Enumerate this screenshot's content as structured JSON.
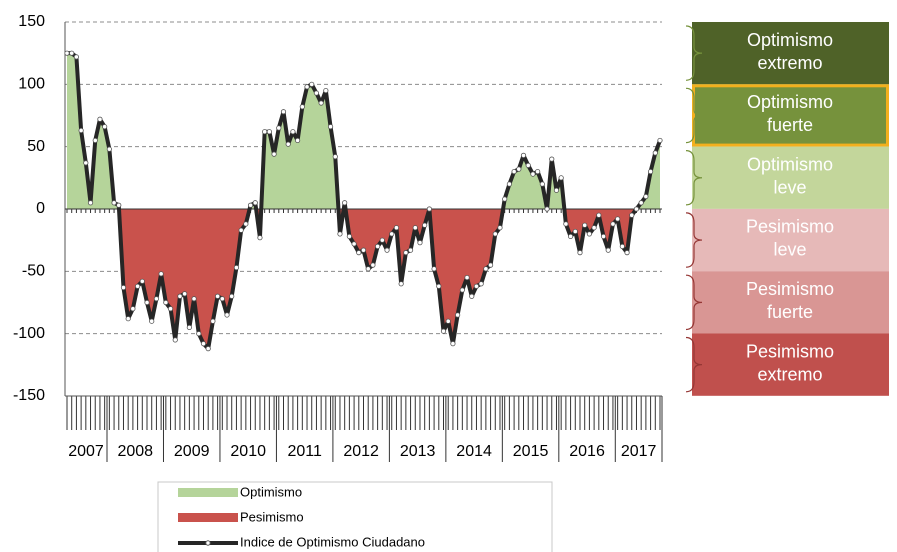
{
  "chart_data": {
    "type": "area-line",
    "series": [
      {
        "name": "Indice de Optimismo Ciudadano",
        "color": "#262626",
        "values": [
          125,
          125,
          122,
          63,
          37,
          5,
          55,
          72,
          66,
          48,
          5,
          3,
          -63,
          -88,
          -80,
          -62,
          -58,
          -75,
          -90,
          -72,
          -52,
          -75,
          -80,
          -105,
          -70,
          -68,
          -95,
          -72,
          -100,
          -108,
          -112,
          -90,
          -70,
          -72,
          -85,
          -70,
          -47,
          -17,
          -12,
          3,
          5,
          -23,
          62,
          62,
          44,
          65,
          78,
          52,
          62,
          55,
          82,
          98,
          100,
          93,
          85,
          95,
          66,
          42,
          -20,
          5,
          -22,
          -28,
          -35,
          -33,
          -48,
          -45,
          -30,
          -25,
          -33,
          -20,
          -15,
          -60,
          -35,
          -33,
          -15,
          -27,
          -13,
          0,
          -48,
          -62,
          -98,
          -90,
          -108,
          -85,
          -65,
          -55,
          -70,
          -62,
          -60,
          -48,
          -45,
          -20,
          -15,
          8,
          20,
          30,
          32,
          43,
          35,
          28,
          30,
          20,
          0,
          40,
          15,
          25,
          -12,
          -22,
          -18,
          -35,
          -13,
          -20,
          -15,
          -5,
          -22,
          -33,
          -12,
          -8,
          -30,
          -35,
          -5,
          0,
          5,
          10,
          30,
          45,
          55
        ]
      }
    ],
    "categories": [
      "2007",
      "2007",
      "2007",
      "2007",
      "2007",
      "2007",
      "2007",
      "2007",
      "2007",
      "2008",
      "2008",
      "2008",
      "2008",
      "2008",
      "2008",
      "2008",
      "2008",
      "2008",
      "2008",
      "2008",
      "2008",
      "2009",
      "2009",
      "2009",
      "2009",
      "2009",
      "2009",
      "2009",
      "2009",
      "2009",
      "2009",
      "2009",
      "2009",
      "2010",
      "2010",
      "2010",
      "2010",
      "2010",
      "2010",
      "2010",
      "2010",
      "2010",
      "2010",
      "2010",
      "2010",
      "2011",
      "2011",
      "2011",
      "2011",
      "2011",
      "2011",
      "2011",
      "2011",
      "2011",
      "2011",
      "2011",
      "2011",
      "2012",
      "2012",
      "2012",
      "2012",
      "2012",
      "2012",
      "2012",
      "2012",
      "2012",
      "2012",
      "2012",
      "2012",
      "2013",
      "2013",
      "2013",
      "2013",
      "2013",
      "2013",
      "2013",
      "2013",
      "2013",
      "2013",
      "2013",
      "2013",
      "2014",
      "2014",
      "2014",
      "2014",
      "2014",
      "2014",
      "2014",
      "2014",
      "2014",
      "2014",
      "2014",
      "2014",
      "2015",
      "2015",
      "2015",
      "2015",
      "2015",
      "2015",
      "2015",
      "2015",
      "2015",
      "2015",
      "2015",
      "2015",
      "2016",
      "2016",
      "2016",
      "2016",
      "2016",
      "2016",
      "2016",
      "2016",
      "2016",
      "2016",
      "2016",
      "2016",
      "2017",
      "2017",
      "2017",
      "2017",
      "2017",
      "2017",
      "2017",
      "2017",
      "2017",
      "2017"
    ],
    "fills": [
      {
        "name": "Optimismo",
        "color": "#b5d49a"
      },
      {
        "name": "Pesimismo",
        "color": "#c9524c"
      }
    ],
    "ylim": [
      -150,
      150
    ],
    "yticks": [
      -150,
      -100,
      -50,
      0,
      50,
      100,
      150
    ],
    "grid": true,
    "bands": [
      {
        "lines": [
          "Optimismo",
          "extremo"
        ],
        "color": "#4f6228"
      },
      {
        "lines": [
          "Optimismo",
          "fuerte"
        ],
        "color": "#76923c",
        "highlight": "#f2b01e"
      },
      {
        "lines": [
          "Optimismo",
          "leve"
        ],
        "color": "#c3d69b"
      },
      {
        "lines": [
          "Pesimismo",
          "leve"
        ],
        "color": "#e6b9b8"
      },
      {
        "lines": [
          "Pesimismo",
          "fuerte"
        ],
        "color": "#d99694"
      },
      {
        "lines": [
          "Pesimismo",
          "extremo"
        ],
        "color": "#c0504d"
      }
    ]
  }
}
